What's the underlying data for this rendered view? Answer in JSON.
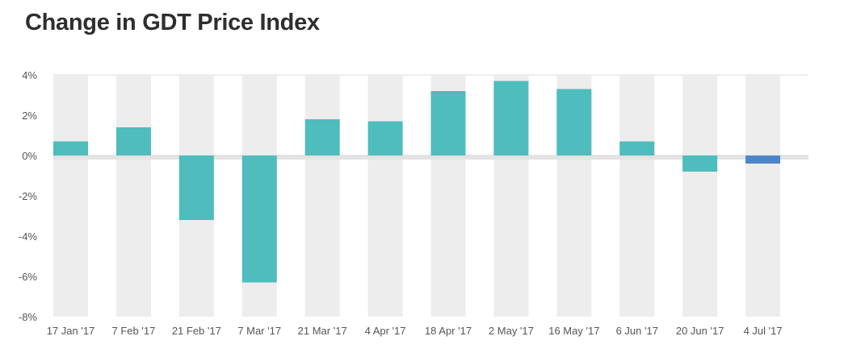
{
  "chart_data": {
    "type": "bar",
    "title": "Change in GDT Price Index",
    "categories": [
      "17 Jan '17",
      "7 Feb '17",
      "21 Feb '17",
      "7 Mar '17",
      "21 Mar '17",
      "4 Apr '17",
      "18 Apr '17",
      "2 May '17",
      "16 May '17",
      "6 Jun '17",
      "20 Jun '17",
      "4 Jul '17"
    ],
    "values": [
      0.7,
      1.4,
      -3.2,
      -6.3,
      1.8,
      1.7,
      3.2,
      3.7,
      3.3,
      0.7,
      -0.8,
      -0.4
    ],
    "y_ticks": [
      "4%",
      "2%",
      "0%",
      "-2%",
      "-4%",
      "-6%",
      "-8%"
    ],
    "ylim": [
      -8,
      4
    ],
    "xlabel": "",
    "ylabel": "",
    "colors": {
      "bar": "#4fbcbd",
      "bar_highlight": "#4d86c8",
      "band": "#ededed",
      "zero_band": "#e3e3e3"
    }
  }
}
